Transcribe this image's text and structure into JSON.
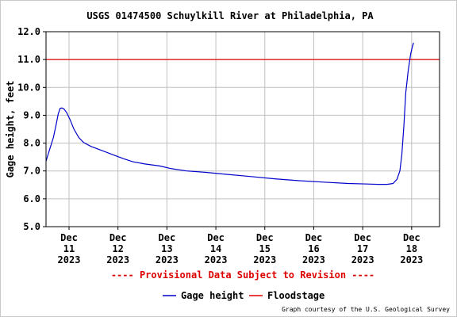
{
  "chart_data": {
    "type": "line",
    "title": "USGS 01474500 Schuylkill River at Philadelphia, PA",
    "ylabel": "Gage height, feet",
    "xlabel": "",
    "ylim": [
      5.0,
      12.0
    ],
    "yticks": [
      "5.0",
      "6.0",
      "7.0",
      "8.0",
      "9.0",
      "10.0",
      "11.0",
      "12.0"
    ],
    "xlim_days": [
      10.53,
      18.57
    ],
    "xticks": [
      {
        "day": 11,
        "label": [
          "Dec",
          "11",
          "2023"
        ]
      },
      {
        "day": 12,
        "label": [
          "Dec",
          "12",
          "2023"
        ]
      },
      {
        "day": 13,
        "label": [
          "Dec",
          "13",
          "2023"
        ]
      },
      {
        "day": 14,
        "label": [
          "Dec",
          "14",
          "2023"
        ]
      },
      {
        "day": 15,
        "label": [
          "Dec",
          "15",
          "2023"
        ]
      },
      {
        "day": 16,
        "label": [
          "Dec",
          "16",
          "2023"
        ]
      },
      {
        "day": 17,
        "label": [
          "Dec",
          "17",
          "2023"
        ]
      },
      {
        "day": 18,
        "label": [
          "Dec",
          "18",
          "2023"
        ]
      }
    ],
    "grid": true,
    "floodstage": 11.0,
    "series": [
      {
        "name": "Gage height",
        "color": "#0000cc",
        "points": [
          [
            10.53,
            7.35
          ],
          [
            10.6,
            7.75
          ],
          [
            10.68,
            8.2
          ],
          [
            10.74,
            8.7
          ],
          [
            10.78,
            9.05
          ],
          [
            10.82,
            9.25
          ],
          [
            10.86,
            9.26
          ],
          [
            10.9,
            9.22
          ],
          [
            10.95,
            9.1
          ],
          [
            11.02,
            8.85
          ],
          [
            11.1,
            8.5
          ],
          [
            11.2,
            8.2
          ],
          [
            11.3,
            8.02
          ],
          [
            11.45,
            7.88
          ],
          [
            11.65,
            7.75
          ],
          [
            11.9,
            7.58
          ],
          [
            12.1,
            7.45
          ],
          [
            12.3,
            7.33
          ],
          [
            12.55,
            7.25
          ],
          [
            12.85,
            7.18
          ],
          [
            13.1,
            7.08
          ],
          [
            13.4,
            7.0
          ],
          [
            13.8,
            6.95
          ],
          [
            14.2,
            6.88
          ],
          [
            14.7,
            6.8
          ],
          [
            15.2,
            6.72
          ],
          [
            15.7,
            6.65
          ],
          [
            16.2,
            6.6
          ],
          [
            16.7,
            6.55
          ],
          [
            17.1,
            6.53
          ],
          [
            17.3,
            6.52
          ],
          [
            17.5,
            6.52
          ],
          [
            17.62,
            6.55
          ],
          [
            17.7,
            6.7
          ],
          [
            17.76,
            7.0
          ],
          [
            17.8,
            7.6
          ],
          [
            17.84,
            8.6
          ],
          [
            17.88,
            9.8
          ],
          [
            17.93,
            10.6
          ],
          [
            17.98,
            11.2
          ],
          [
            18.02,
            11.5
          ],
          [
            18.04,
            11.6
          ]
        ]
      }
    ],
    "legend": {
      "placement": "bottom-center",
      "items": [
        {
          "label": "Gage height",
          "color": "#0000cc"
        },
        {
          "label": "Floodstage",
          "color": "#dd0000"
        }
      ]
    },
    "annotations": {
      "provisional": "---- Provisional Data Subject to Revision ----",
      "provisional_color": "#dd0000",
      "credit": "Graph courtesy of the U.S. Geological Survey"
    },
    "colors": {
      "grid": "#c0c0c0",
      "axes": "#000000",
      "floodstage": "#dd0000",
      "series": "#0000cc"
    }
  }
}
